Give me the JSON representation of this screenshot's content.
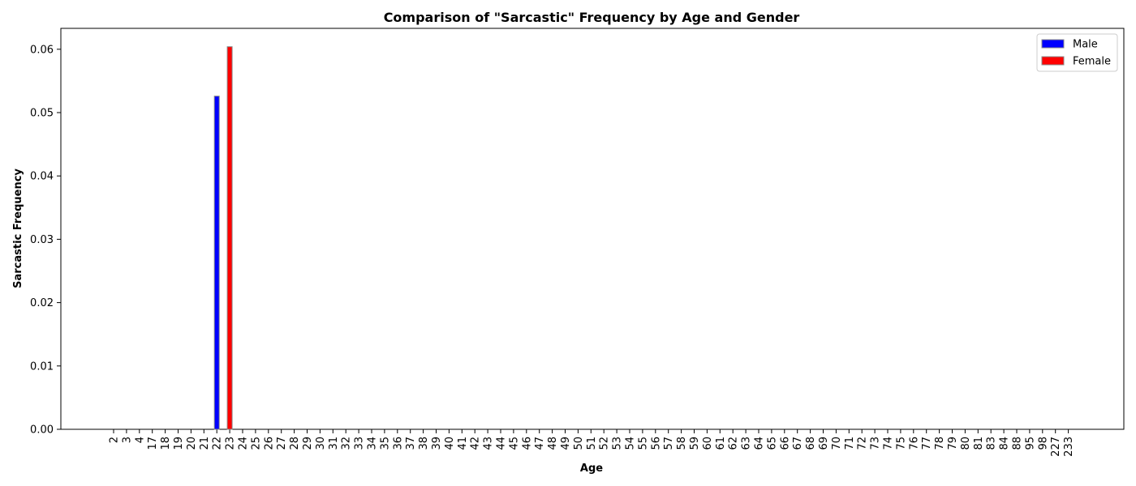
{
  "chart_data": {
    "type": "bar",
    "title": "Comparison of \"Sarcastic\" Frequency by Age and Gender",
    "xlabel": "Age",
    "ylabel": "Sarcastic Frequency",
    "ylim": [
      0,
      0.0633
    ],
    "yticks": [
      "0.00",
      "0.01",
      "0.02",
      "0.03",
      "0.04",
      "0.05",
      "0.06"
    ],
    "categories": [
      "2",
      "3",
      "4",
      "17",
      "18",
      "19",
      "20",
      "21",
      "22",
      "23",
      "24",
      "25",
      "26",
      "27",
      "28",
      "29",
      "30",
      "31",
      "32",
      "33",
      "34",
      "35",
      "36",
      "37",
      "38",
      "39",
      "40",
      "41",
      "42",
      "43",
      "44",
      "45",
      "46",
      "47",
      "48",
      "49",
      "50",
      "51",
      "52",
      "53",
      "54",
      "55",
      "56",
      "57",
      "58",
      "59",
      "60",
      "61",
      "62",
      "63",
      "64",
      "65",
      "66",
      "67",
      "68",
      "69",
      "70",
      "71",
      "72",
      "73",
      "74",
      "75",
      "76",
      "77",
      "78",
      "79",
      "80",
      "81",
      "83",
      "84",
      "88",
      "95",
      "98",
      "227",
      "233"
    ],
    "series": [
      {
        "name": "Male",
        "color": "#0000ff",
        "values_by_category": {
          "22": 0.0526
        }
      },
      {
        "name": "Female",
        "color": "#ff0000",
        "values_by_category": {
          "23": 0.0604
        }
      }
    ],
    "legend_position": "top-right",
    "grid": false
  }
}
